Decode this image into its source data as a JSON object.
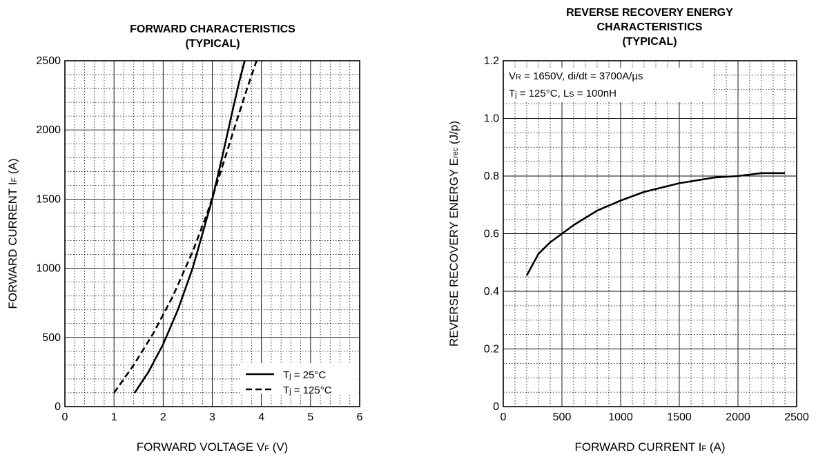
{
  "chart_data": [
    {
      "type": "line",
      "title_lines": [
        "FORWARD CHARACTERISTICS",
        "(TYPICAL)"
      ],
      "xlabel": {
        "main": "FORWARD VOLTAGE V",
        "sub": "F",
        "unit": " (V)"
      },
      "ylabel": {
        "main": "FORWARD CURRENT I",
        "sub": "F",
        "unit": " (A)"
      },
      "xlim": [
        0,
        6
      ],
      "ylim": [
        0,
        2500
      ],
      "xticks": [
        0,
        1,
        2,
        3,
        4,
        5,
        6
      ],
      "yticks": [
        0,
        500,
        1000,
        1500,
        2000,
        2500
      ],
      "grid": true,
      "legend": "bottom-right",
      "series": [
        {
          "name": "Tj = 25°C",
          "legend_text": {
            "pre": "T",
            "sub": "j",
            "post": " = 25°C"
          },
          "style": "solid",
          "x": [
            1.42,
            1.7,
            2.0,
            2.3,
            2.6,
            2.8,
            3.0,
            3.2,
            3.4,
            3.55,
            3.66
          ],
          "y": [
            100,
            250,
            450,
            700,
            1000,
            1250,
            1500,
            1800,
            2120,
            2350,
            2500
          ]
        },
        {
          "name": "Tj = 125°C",
          "legend_text": {
            "pre": "T",
            "sub": "j",
            "post": " = 125°C"
          },
          "style": "dashed",
          "x": [
            1.0,
            1.4,
            1.8,
            2.2,
            2.6,
            2.9,
            3.2,
            3.5,
            3.7,
            3.9
          ],
          "y": [
            100,
            300,
            530,
            800,
            1120,
            1400,
            1730,
            2070,
            2290,
            2500
          ]
        }
      ]
    },
    {
      "type": "line",
      "title_lines": [
        "REVERSE RECOVERY ENERGY",
        "CHARACTERISTICS",
        "(TYPICAL)"
      ],
      "xlabel": {
        "main": "FORWARD CURRENT I",
        "sub": "F",
        "unit": " (A)"
      },
      "ylabel": {
        "main": "REVERSE RECOVERY ENERGY E",
        "sub": "rec",
        "unit": " (J/p)"
      },
      "xlim": [
        0,
        2500
      ],
      "ylim": [
        0,
        1.2
      ],
      "xticks": [
        0,
        500,
        1000,
        1500,
        2000,
        2500
      ],
      "yticks": [
        0,
        0.2,
        0.4,
        0.6,
        0.8,
        1.0,
        1.2
      ],
      "ytick_labels": [
        "0",
        "0.2",
        "0.4",
        "0.6",
        "0.8",
        "1.0",
        "1.2"
      ],
      "grid": true,
      "annotations": [
        {
          "parts": [
            [
              "V",
              false
            ],
            [
              "R",
              true
            ],
            [
              " = 1650V, di/dt = 3700A/µs",
              false
            ]
          ]
        },
        {
          "parts": [
            [
              "T",
              false
            ],
            [
              "j",
              true
            ],
            [
              " = 125°C, L",
              false
            ],
            [
              "S",
              true
            ],
            [
              " = 100nH",
              false
            ]
          ]
        }
      ],
      "series": [
        {
          "style": "solid",
          "x": [
            200,
            300,
            400,
            500,
            600,
            800,
            1000,
            1200,
            1500,
            1800,
            2000,
            2200,
            2400
          ],
          "y": [
            0.455,
            0.53,
            0.57,
            0.6,
            0.63,
            0.68,
            0.715,
            0.745,
            0.775,
            0.795,
            0.8,
            0.81,
            0.81
          ]
        }
      ]
    }
  ]
}
